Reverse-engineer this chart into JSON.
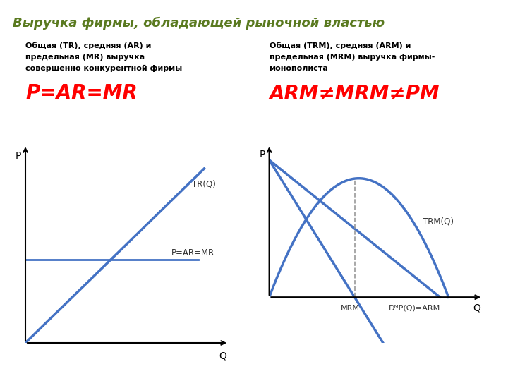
{
  "title": "Выручка фирмы, обладающей рыночной властью",
  "title_bg": "#d8e8c0",
  "bg_color": "#ffffff",
  "left_subtitle1": "Общая (TR), средняя (AR) и",
  "left_subtitle2": "предельная (MR) выручка",
  "left_subtitle3": "совершенно конкурентной фирмы",
  "left_formula": "P=AR=MR",
  "right_subtitle1": "Общая (TRM), средняя (ARM) и",
  "right_subtitle2": "предельная (MRM) выручка фирмы-",
  "right_subtitle3": "монополиста",
  "right_formula": "ARM≠MRM≠PM",
  "line_color": "#4472c4",
  "formula_color": "#ff0000",
  "axis_color": "#000000",
  "label_color": "#333333"
}
